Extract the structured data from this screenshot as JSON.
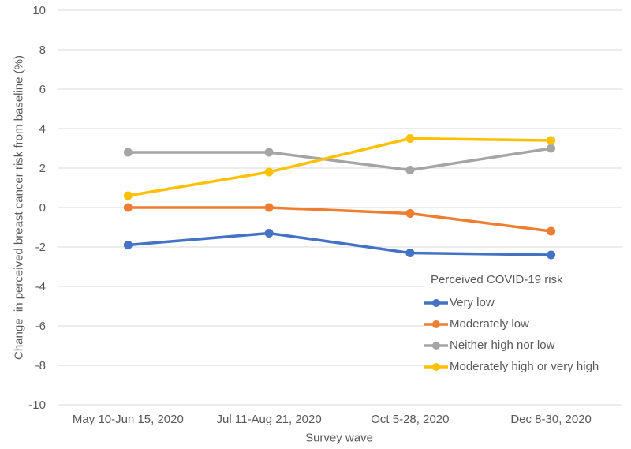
{
  "chart_data": {
    "type": "line",
    "title": "",
    "xlabel": "Survey wave",
    "ylabel": "Change  in perceived breast cancer risk from baseline (%)",
    "legend_title": "Perceived COVID-19 risk",
    "legend_position": "inside-right-lower",
    "grid": true,
    "categories": [
      "May 10-Jun 15, 2020",
      "Jul 11-Aug 21, 2020",
      "Oct 5-28, 2020",
      "Dec 8-30, 2020"
    ],
    "series": [
      {
        "name": "Very low",
        "color": "#4472C4",
        "values": [
          -1.9,
          -1.3,
          -2.3,
          -2.4
        ]
      },
      {
        "name": "Moderately low",
        "color": "#ED7D31",
        "values": [
          0,
          0,
          -0.3,
          -1.2
        ]
      },
      {
        "name": "Neither high nor low",
        "color": "#A5A5A5",
        "values": [
          2.8,
          2.8,
          1.9,
          3.0
        ]
      },
      {
        "name": "Moderately high or very high",
        "color": "#FFC000",
        "values": [
          0.6,
          1.8,
          3.5,
          3.4
        ]
      }
    ],
    "ylim": [
      -10,
      10
    ],
    "ytick_step": 2,
    "ytick_labels": [
      "-10",
      "-8",
      "-6",
      "-4",
      "-2",
      "0",
      "2",
      "4",
      "6",
      "8",
      "10"
    ],
    "colors": {
      "gridline": "#D9D9D9",
      "text": "#595959",
      "background": "#FFFFFF"
    }
  }
}
